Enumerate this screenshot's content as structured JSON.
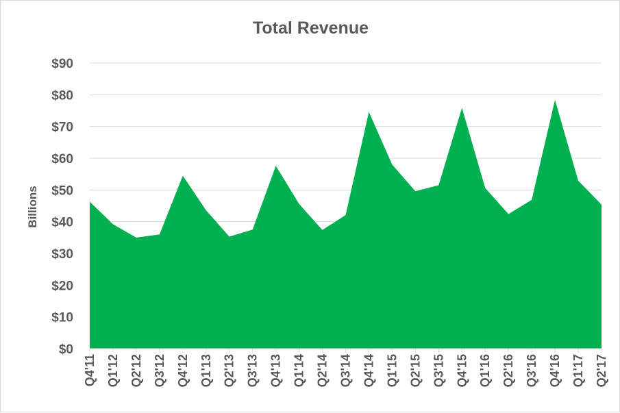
{
  "chart_data": {
    "type": "area",
    "title": "Total Revenue",
    "xlabel": "",
    "ylabel": "Billions",
    "ylim": [
      0,
      90
    ],
    "yticks": [
      0,
      10,
      20,
      30,
      40,
      50,
      60,
      70,
      80,
      90
    ],
    "ytick_labels": [
      "$0",
      "$10",
      "$20",
      "$30",
      "$40",
      "$50",
      "$60",
      "$70",
      "$80",
      "$90"
    ],
    "grid": true,
    "legend": "none",
    "categories": [
      "Q4'11",
      "Q1'12",
      "Q2'12",
      "Q3'12",
      "Q4'12",
      "Q1'13",
      "Q2'13",
      "Q3'13",
      "Q4'13",
      "Q1'14",
      "Q2'14",
      "Q3'14",
      "Q4'14",
      "Q1'15",
      "Q2'15",
      "Q3'15",
      "Q4'15",
      "Q1'16",
      "Q2'16",
      "Q3'16",
      "Q4'16",
      "Q1'17",
      "Q2'17"
    ],
    "series": [
      {
        "color": "#00b050",
        "values": [
          46.3,
          39.2,
          35.0,
          36.0,
          54.5,
          43.6,
          35.3,
          37.5,
          57.6,
          45.6,
          37.4,
          42.1,
          74.6,
          58.0,
          49.6,
          51.5,
          75.9,
          50.6,
          42.4,
          46.9,
          78.4,
          52.9,
          45.4
        ]
      }
    ],
    "colors": {
      "area": "#00b050",
      "grid": "#d9d9d9",
      "text": "#595959"
    }
  }
}
